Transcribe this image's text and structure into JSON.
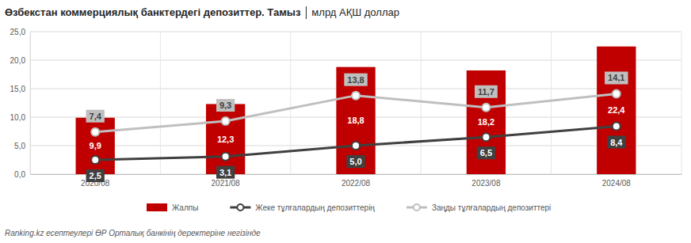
{
  "chart_data": {
    "type": "bar",
    "title": "Өзбекстан коммерциялық банктердегі депозиттер. Тамыз",
    "subtitle": "млрд АҚШ доллар",
    "source": "Ranking.kz есептеулері ӨР Орталық банкінің деректеріне негізінде",
    "categories": [
      "2020/08",
      "2021/08",
      "2022/08",
      "2023/08",
      "2024/08"
    ],
    "series": [
      {
        "name": "Жалпы",
        "type": "bar",
        "color": "#c00000",
        "values": [
          9.9,
          12.3,
          18.8,
          18.2,
          22.4
        ],
        "value_labels": [
          "9,9",
          "12,3",
          "18,8",
          "18,2",
          "22,4"
        ]
      },
      {
        "name": "Жеке тұлғалардың депозиттерің",
        "type": "line",
        "color": "#404040",
        "marker": "circle",
        "values": [
          2.5,
          3.1,
          5.0,
          6.5,
          8.4
        ],
        "value_labels": [
          "2,5",
          "3,1",
          "5,0",
          "6,5",
          "8,4"
        ]
      },
      {
        "name": "Заңды тұлғалардың депозиттері",
        "type": "line",
        "color": "#bfbfbf",
        "marker": "circle",
        "values": [
          7.4,
          9.3,
          13.8,
          11.7,
          14.1
        ],
        "value_labels": [
          "7,4",
          "9,3",
          "13,8",
          "11,7",
          "14,1"
        ]
      }
    ],
    "ylim": [
      0,
      25
    ],
    "yticks": [
      {
        "value": 0,
        "label": "0,0"
      },
      {
        "value": 5,
        "label": "5,0"
      },
      {
        "value": 10,
        "label": "10,0"
      },
      {
        "value": 15,
        "label": "15,0"
      },
      {
        "value": 20,
        "label": "20,0"
      },
      {
        "value": 25,
        "label": "25,0"
      }
    ],
    "grid": true,
    "legend": "bottom",
    "data_labels": true
  }
}
